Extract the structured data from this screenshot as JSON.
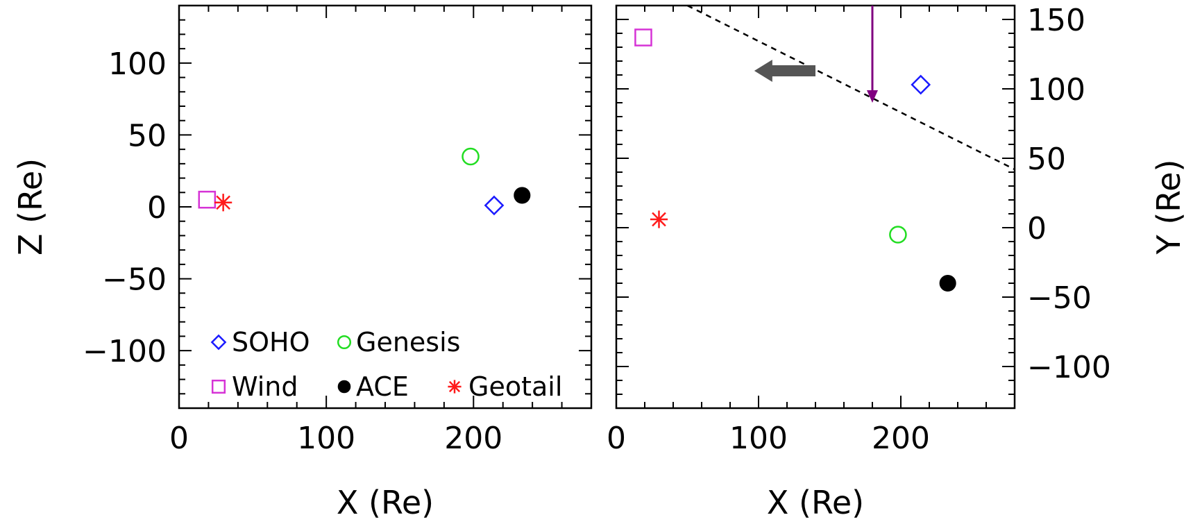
{
  "chart_data": [
    {
      "type": "scatter",
      "xlabel": "X (Re)",
      "ylabel": "Z (Re)",
      "xlim": [
        0,
        280
      ],
      "ylim": [
        -140,
        140
      ],
      "x_ticks": [
        0,
        100,
        200
      ],
      "y_ticks": [
        100,
        50,
        0,
        -50,
        -100
      ],
      "y_axis_side": "left",
      "series": [
        {
          "name": "SOHO",
          "marker": "diamond",
          "color": "#1a1aff",
          "x": 214,
          "y": 1
        },
        {
          "name": "Genesis",
          "marker": "circle",
          "color": "#22dd22",
          "x": 198,
          "y": 35
        },
        {
          "name": "Wind",
          "marker": "square",
          "color": "#d633d6",
          "x": 19,
          "y": 5
        },
        {
          "name": "ACE",
          "marker": "filled-circle",
          "color": "#000000",
          "x": 233,
          "y": 8
        },
        {
          "name": "Geotail",
          "marker": "asterisk",
          "color": "#ff1a1a",
          "x": 30,
          "y": 3
        }
      ],
      "legend": {
        "position": "bottom-left"
      }
    },
    {
      "type": "scatter",
      "xlabel": "X (Re)",
      "ylabel": "Y (Re)",
      "xlim": [
        0,
        280
      ],
      "ylim": [
        -130,
        160
      ],
      "x_ticks": [
        0,
        100,
        200
      ],
      "y_ticks": [
        150,
        100,
        50,
        0,
        -50,
        -100
      ],
      "y_axis_side": "right",
      "series": [
        {
          "name": "SOHO",
          "marker": "diamond",
          "color": "#1a1aff",
          "x": 214,
          "y": 103
        },
        {
          "name": "Genesis",
          "marker": "circle",
          "color": "#22dd22",
          "x": 198,
          "y": -5
        },
        {
          "name": "Wind",
          "marker": "square",
          "color": "#d633d6",
          "x": 19,
          "y": 137
        },
        {
          "name": "ACE",
          "marker": "filled-circle",
          "color": "#000000",
          "x": 233,
          "y": -40
        },
        {
          "name": "Geotail",
          "marker": "asterisk",
          "color": "#ff1a1a",
          "x": 30,
          "y": 6
        }
      ],
      "annotations": [
        {
          "kind": "dashed-line",
          "color": "#000000",
          "from": [
            50,
            160
          ],
          "to": [
            280,
            42
          ]
        },
        {
          "kind": "arrow",
          "color": "#800080",
          "from": [
            180,
            160
          ],
          "to": [
            180,
            92
          ]
        },
        {
          "kind": "block-arrow",
          "color": "#555555",
          "from": [
            140,
            113
          ],
          "to": [
            97,
            113
          ]
        }
      ]
    }
  ]
}
